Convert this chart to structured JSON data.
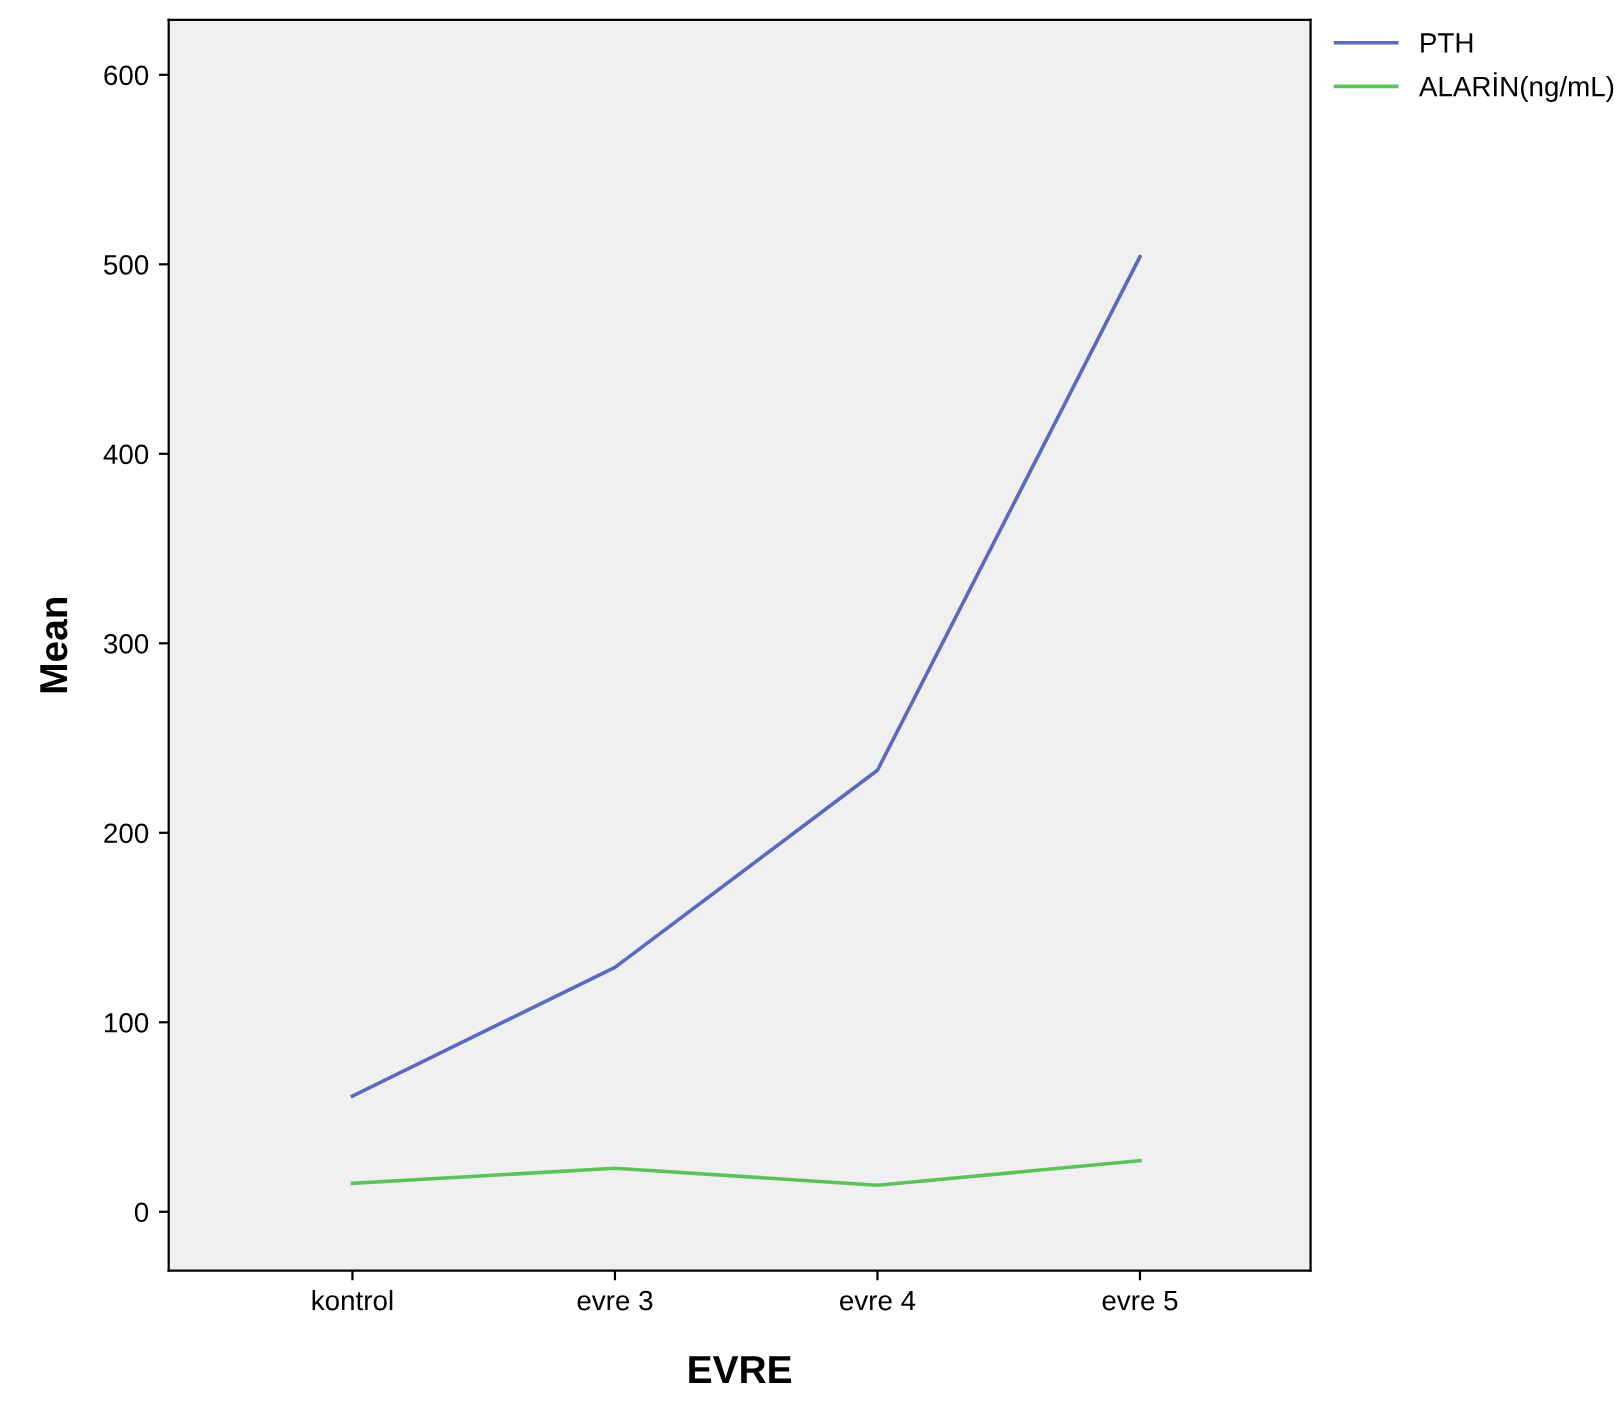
{
  "chart_data": {
    "type": "line",
    "xlabel": "EVRE",
    "ylabel": "Mean",
    "categories": [
      "kontrol",
      "evre 3",
      "evre 4",
      "evre 5"
    ],
    "series": [
      {
        "name": "PTH",
        "color": "#5a6bbd",
        "values": [
          61,
          129,
          233,
          504
        ]
      },
      {
        "name": "ALARİN(ng/mL)",
        "color": "#5cc35c",
        "values": [
          15,
          23,
          14,
          27
        ]
      }
    ],
    "ylim": [
      -31,
      629
    ],
    "yticks": [
      0,
      100,
      200,
      300,
      400,
      500,
      600
    ],
    "grid": false,
    "legend": "top right",
    "marker": "none",
    "line_style": "solid"
  }
}
